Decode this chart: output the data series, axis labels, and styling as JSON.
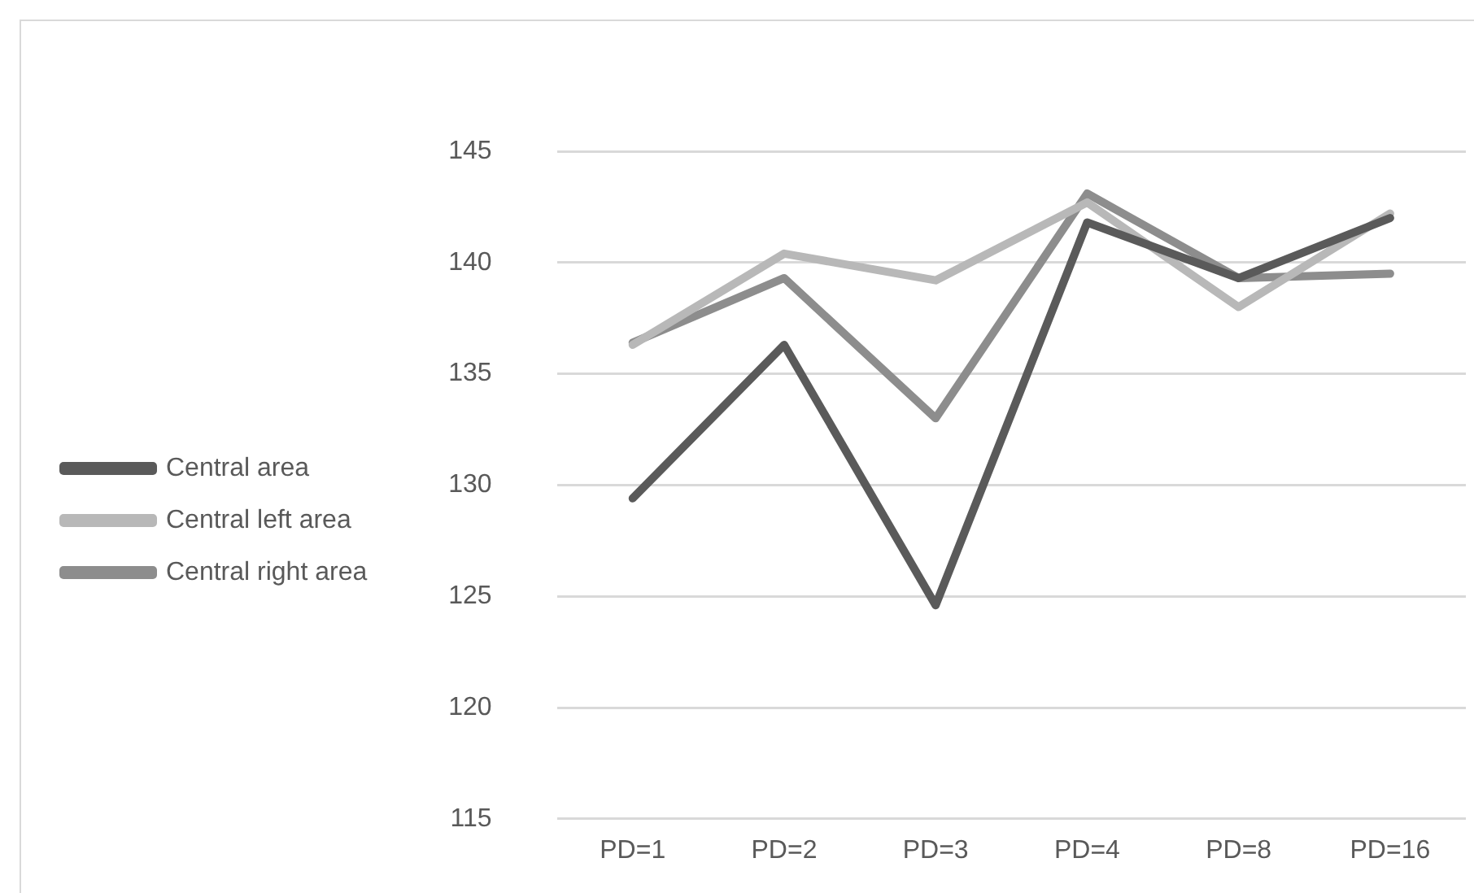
{
  "chart_data": {
    "type": "line",
    "categories": [
      "PD=1",
      "PD=2",
      "PD=3",
      "PD=4",
      "PD=8",
      "PD=16"
    ],
    "series": [
      {
        "name": "Central area",
        "color": "#5a5a5a",
        "values": [
          129.4,
          136.3,
          124.6,
          141.8,
          139.3,
          142.0
        ]
      },
      {
        "name": "Central left area",
        "color": "#b8b8b8",
        "values": [
          136.3,
          140.4,
          139.2,
          142.7,
          138.0,
          142.2
        ]
      },
      {
        "name": "Central right area",
        "color": "#8d8d8d",
        "values": [
          136.4,
          139.3,
          133.0,
          143.1,
          139.3,
          139.5
        ]
      }
    ],
    "ylim": [
      115,
      145
    ],
    "yticks": [
      115,
      120,
      125,
      130,
      135,
      140,
      145
    ],
    "grid": "y",
    "legend": "left",
    "marker": "none",
    "line_style": "solid"
  }
}
